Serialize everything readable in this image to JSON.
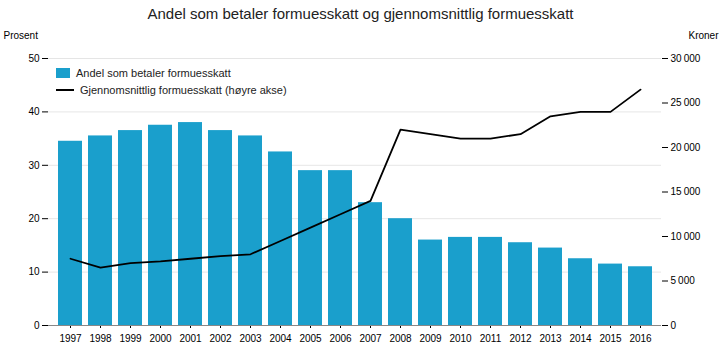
{
  "chart_data": {
    "type": "bar",
    "title": "Andel som betaler formuesskatt og gjennomsnittlig formuesskatt",
    "ylabel": "Prosent",
    "y2label": "Kroner",
    "categories": [
      "1997",
      "1998",
      "1999",
      "2000",
      "2001",
      "2002",
      "2003",
      "2004",
      "2005",
      "2006",
      "2007",
      "2008",
      "2009",
      "2010",
      "2011",
      "2012",
      "2013",
      "2014",
      "2015",
      "2016"
    ],
    "series": [
      {
        "name": "Andel som betaler formuesskatt",
        "type": "bar",
        "color": "#1a9fcc",
        "values": [
          34.5,
          35.5,
          36.5,
          37.5,
          38.0,
          36.5,
          35.5,
          32.5,
          29.0,
          29.0,
          23.0,
          20.0,
          16.0,
          16.5,
          16.5,
          15.5,
          14.5,
          12.5,
          11.5,
          11.0
        ]
      },
      {
        "name": "Gjennomsnittlig formuesskatt (høyre akse)",
        "type": "line",
        "color": "#000000",
        "axis": "y2",
        "values": [
          7500,
          6500,
          7000,
          7200,
          7500,
          7800,
          8000,
          9500,
          11000,
          12500,
          14000,
          22000,
          21500,
          21000,
          21000,
          21500,
          23500,
          24000,
          24000,
          26500
        ]
      }
    ],
    "ylim": [
      0,
      50
    ],
    "yticks": [
      0,
      10,
      20,
      30,
      40,
      50
    ],
    "y2lim": [
      0,
      30000
    ],
    "y2ticks": [
      0,
      {
        "value": 5000,
        "label": "5 000"
      },
      {
        "value": 10000,
        "label": "10 000"
      },
      {
        "value": 15000,
        "label": "15 000"
      },
      {
        "value": 20000,
        "label": "20 000"
      },
      {
        "value": 25000,
        "label": "25 000"
      },
      {
        "value": 30000,
        "label": "30 000"
      }
    ],
    "grid": true,
    "legend": "upper left"
  }
}
